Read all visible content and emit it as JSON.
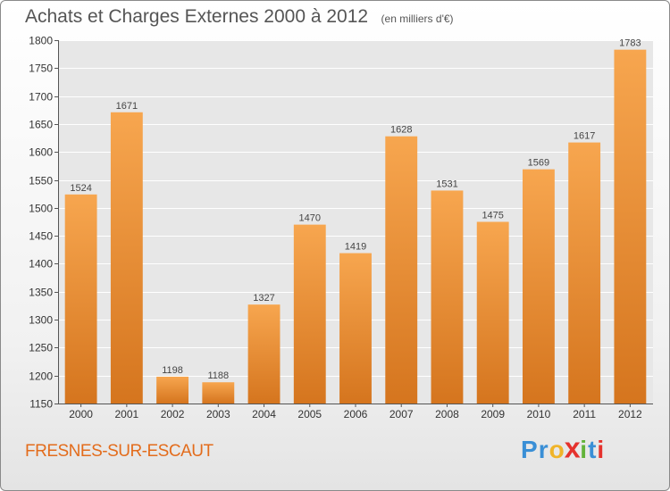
{
  "header": {
    "title": "Achats et Charges Externes 2000 à 2012",
    "subtitle": "(en milliers d'€)"
  },
  "footer": {
    "commune": "FRESNES-SUR-ESCAUT",
    "logo_letters": [
      "P",
      "r",
      "o",
      "x",
      "i",
      "t",
      "i"
    ],
    "logo_colors": [
      "#3a8fd6",
      "#3a8fd6",
      "#f0b429",
      "#e5322d",
      "#62b33a",
      "#3a8fd6",
      "#e5322d"
    ]
  },
  "colors": {
    "bar_top": "#f7a64f",
    "bar_bottom": "#d5751e",
    "commune": "#e36c1c"
  },
  "chart_data": {
    "type": "bar",
    "title": "Achats et Charges Externes 2000 à 2012",
    "subtitle": "(en milliers d'€)",
    "categories": [
      "2000",
      "2001",
      "2002",
      "2003",
      "2004",
      "2005",
      "2006",
      "2007",
      "2008",
      "2009",
      "2010",
      "2011",
      "2012"
    ],
    "values": [
      1524,
      1671,
      1198,
      1188,
      1327,
      1470,
      1419,
      1628,
      1531,
      1475,
      1569,
      1617,
      1783
    ],
    "ylim": [
      1150,
      1800
    ],
    "yticks": [
      1150,
      1200,
      1250,
      1300,
      1350,
      1400,
      1450,
      1500,
      1550,
      1600,
      1650,
      1700,
      1750,
      1800
    ],
    "xlabel": "",
    "ylabel": "",
    "grid": true,
    "data_labels": true
  }
}
